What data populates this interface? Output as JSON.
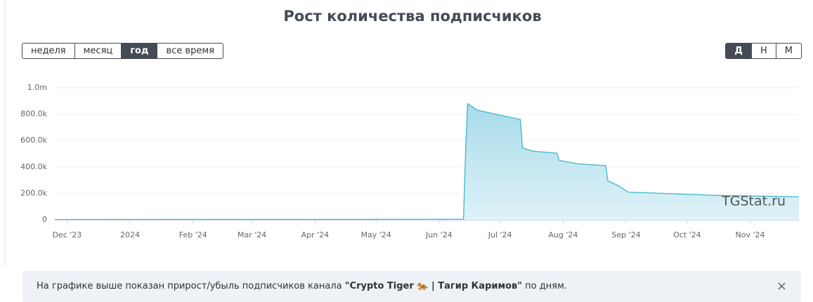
{
  "page": {
    "period_buttons": [
      "неделя",
      "месяц",
      "год",
      "все время"
    ],
    "active_period": 2,
    "scale_buttons": [
      "Д",
      "Н",
      "М"
    ],
    "active_scale": 0,
    "info": {
      "before": "На графике выше показан прирост/убыль подписчиков канала ",
      "channel": "\"Crypto Tiger 🐅 | Тагир Каримов\"",
      "after": " по дням.",
      "close": "×"
    }
  },
  "chart_data": {
    "type": "area",
    "title": "Рост количества подписчиков",
    "watermark": "TGStat.ru",
    "color": "#3fb6cf",
    "x": [
      "2023-11-25",
      "2024-02-01",
      "2024-04-15",
      "2024-06-13",
      "2024-06-14",
      "2024-06-15",
      "2024-06-20",
      "2024-07-11",
      "2024-07-12",
      "2024-07-17",
      "2024-07-29",
      "2024-07-30",
      "2024-08-08",
      "2024-08-22",
      "2024-08-23",
      "2024-08-28",
      "2024-09-02",
      "2024-10-15",
      "2024-11-25"
    ],
    "values": [
      2000,
      3000,
      3000,
      5000,
      500000,
      880000,
      830000,
      760000,
      545000,
      520000,
      505000,
      450000,
      425000,
      410000,
      295000,
      260000,
      210000,
      185000,
      175000
    ],
    "xlim": [
      "2023-11-25",
      "2024-11-25"
    ],
    "xticks": [
      {
        "value": "2023-12-01",
        "label": "Dec '23"
      },
      {
        "value": "2024-01-01",
        "label": "2024"
      },
      {
        "value": "2024-02-01",
        "label": "Feb '24"
      },
      {
        "value": "2024-03-01",
        "label": "Mar '24"
      },
      {
        "value": "2024-04-01",
        "label": "Apr '24"
      },
      {
        "value": "2024-05-01",
        "label": "May '24"
      },
      {
        "value": "2024-06-01",
        "label": "Jun '24"
      },
      {
        "value": "2024-07-01",
        "label": "Jul '24"
      },
      {
        "value": "2024-08-01",
        "label": "Aug '24"
      },
      {
        "value": "2024-09-01",
        "label": "Sep '24"
      },
      {
        "value": "2024-10-01",
        "label": "Oct '24"
      },
      {
        "value": "2024-11-01",
        "label": "Nov '24"
      }
    ],
    "ylim": [
      0,
      1000000
    ],
    "yticks": [
      0,
      {
        "value": 200000,
        "label": "200.0k"
      },
      {
        "value": 400000,
        "label": "400.0k"
      },
      {
        "value": 600000,
        "label": "600.0k"
      },
      {
        "value": 800000,
        "label": "800.0k"
      },
      {
        "value": 1000000,
        "label": "1.0m"
      }
    ],
    "grid": true
  }
}
